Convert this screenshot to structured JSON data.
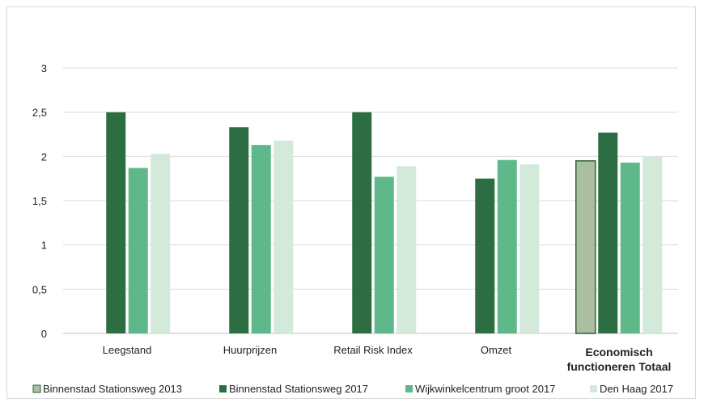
{
  "chart_data": {
    "type": "bar",
    "title": "",
    "xlabel": "",
    "ylabel": "",
    "ylim": [
      0,
      3
    ],
    "yticks": [
      "0",
      "0,5",
      "1",
      "1,5",
      "2",
      "2,5",
      "3"
    ],
    "grid": true,
    "legend_position": "bottom",
    "categories": [
      {
        "label": "Leegstand",
        "bold": false
      },
      {
        "label": "Huurprijzen",
        "bold": false
      },
      {
        "label": "Retail Risk Index",
        "bold": false
      },
      {
        "label": "Omzet",
        "bold": false
      },
      {
        "label": "Economisch functioneren Totaal",
        "lines": [
          "Economisch",
          "functioneren Totaal"
        ],
        "bold": true
      }
    ],
    "series": [
      {
        "name": "Binnenstad Stationsweg 2013",
        "color": "#a9bfa0",
        "border": "#2f5f3a",
        "values": [
          null,
          null,
          null,
          null,
          1.95
        ]
      },
      {
        "name": "Binnenstad Stationsweg 2017",
        "color": "#2c6e41",
        "values": [
          2.5,
          2.33,
          2.5,
          1.75,
          2.27
        ]
      },
      {
        "name": "Wijkwinkelcentrum groot 2017",
        "color": "#5fb88a",
        "values": [
          1.87,
          2.13,
          1.77,
          1.96,
          1.93
        ]
      },
      {
        "name": "Den Haag 2017",
        "color": "#d3eadb",
        "values": [
          2.03,
          2.18,
          1.89,
          1.91,
          2.0
        ]
      }
    ]
  }
}
